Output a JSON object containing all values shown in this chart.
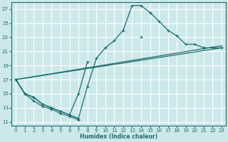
{
  "xlabel": "Humidex (Indice chaleur)",
  "bg_color": "#cce8ea",
  "grid_color": "#ffffff",
  "line_color": "#1e6b6b",
  "xlim": [
    -0.5,
    23.5
  ],
  "ylim": [
    10.5,
    28
  ],
  "xticks": [
    0,
    1,
    2,
    3,
    4,
    5,
    6,
    7,
    8,
    9,
    10,
    11,
    12,
    13,
    14,
    15,
    16,
    17,
    18,
    19,
    20,
    21,
    22,
    23
  ],
  "yticks": [
    11,
    13,
    15,
    17,
    19,
    21,
    23,
    25,
    27
  ],
  "series1_x": [
    0,
    1,
    2,
    3,
    4,
    5,
    6,
    7
  ],
  "series1_y": [
    17,
    15,
    14,
    13.2,
    12.8,
    12.2,
    11.8,
    11.3
  ],
  "series2_x": [
    0,
    1,
    2,
    3,
    4,
    5,
    6,
    7,
    8,
    9,
    10,
    11,
    12,
    13,
    14,
    15,
    16,
    17,
    18,
    19,
    20,
    21,
    22,
    23
  ],
  "series2_y": [
    17,
    15,
    14.5,
    13.5,
    13,
    12.5,
    12,
    11.5,
    16,
    20,
    21.5,
    22.5,
    24,
    27.5,
    27.5,
    26.5,
    25.3,
    24,
    23.2,
    22,
    22,
    21.5,
    21.5,
    21.5
  ],
  "series3_x": [
    0,
    23
  ],
  "series3_y": [
    17,
    21.5
  ],
  "series4_x": [
    0,
    23
  ],
  "series4_y": [
    17,
    21.8
  ],
  "series5_x": [
    0,
    1,
    2,
    3,
    4,
    5,
    6,
    7,
    8,
    9,
    10,
    11,
    12,
    13,
    14,
    15,
    16,
    17,
    18,
    19,
    20,
    21,
    22,
    23
  ],
  "series5_y": [
    17,
    15,
    14.5,
    13.5,
    13,
    12.5,
    12,
    15,
    19.5,
    null,
    null,
    null,
    null,
    null,
    23,
    null,
    null,
    null,
    null,
    null,
    null,
    21.5,
    null,
    21.5
  ]
}
